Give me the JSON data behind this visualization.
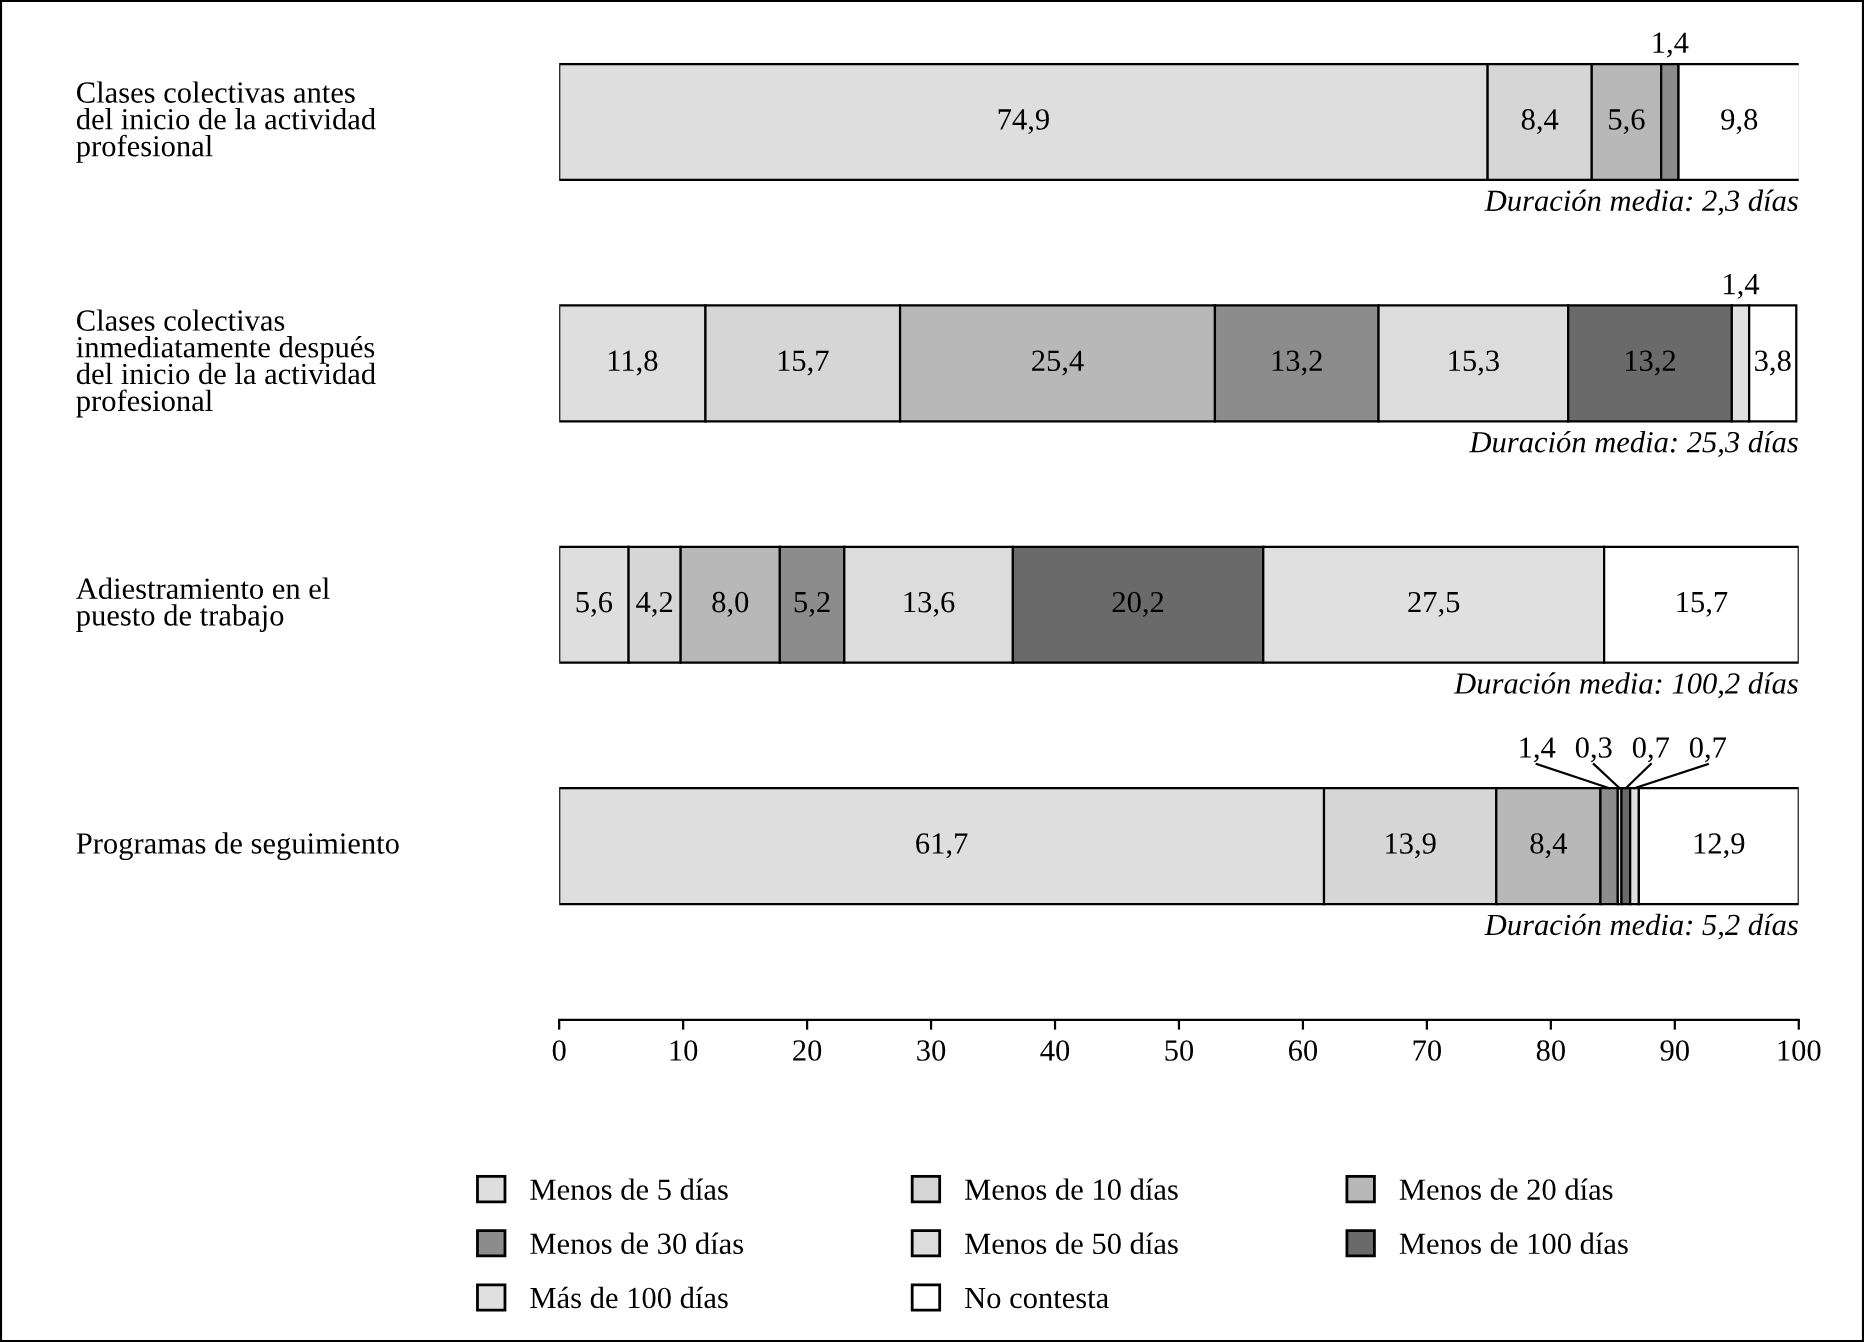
{
  "chart_data": {
    "type": "bar",
    "orientation": "horizontal",
    "stacked": true,
    "categories": [
      "Clases colectivas antes\ndel inicio de la actividad\nprofesional",
      "Clases colectivas\ninmediatamente después\ndel inicio de la actividad\nprofesional",
      "Adiestramiento en el\npuesto de trabajo",
      "Programas de seguimiento"
    ],
    "series": [
      {
        "name": "Menos de 5 días",
        "color": "#dedede",
        "values": [
          74.9,
          11.8,
          5.6,
          61.7
        ],
        "value_labels": [
          "74,9",
          "11,8",
          "5,6",
          "61,7"
        ]
      },
      {
        "name": "Menos de 10 días",
        "color": "#d6d6d6",
        "values": [
          8.4,
          15.7,
          4.2,
          13.9
        ],
        "value_labels": [
          "8,4",
          "15,7",
          "4,2",
          "13,9"
        ]
      },
      {
        "name": "Menos de 20 días",
        "color": "#b8b8b8",
        "values": [
          5.6,
          25.4,
          8.0,
          8.4
        ],
        "value_labels": [
          "5,6",
          "25,4",
          "8,0",
          "8,4"
        ]
      },
      {
        "name": "Menos de 30 días",
        "color": "#8c8c8c",
        "values": [
          1.4,
          13.2,
          5.2,
          1.4
        ],
        "value_labels": [
          "1,4",
          "13,2",
          "5,2",
          "1,4"
        ]
      },
      {
        "name": "Menos de 50 días",
        "color": "#dcdcdc",
        "values": [
          null,
          15.3,
          13.6,
          0.3
        ],
        "value_labels": [
          null,
          "15,3",
          "13,6",
          "0,3"
        ]
      },
      {
        "name": "Menos de 100 días",
        "color": "#6a6a6a",
        "values": [
          null,
          13.2,
          20.2,
          0.7
        ],
        "value_labels": [
          null,
          "13,2",
          "20,2",
          "0,7"
        ]
      },
      {
        "name": "Más de 100 días",
        "color": "#e0e0e0",
        "values": [
          null,
          1.4,
          27.5,
          0.7
        ],
        "value_labels": [
          null,
          "1,4",
          "27,5",
          "0,7"
        ]
      },
      {
        "name": "No contesta",
        "color": "#ffffff",
        "values": [
          9.8,
          3.8,
          15.7,
          12.9
        ],
        "value_labels": [
          "9,8",
          "3,8",
          "15,7",
          "12,9"
        ]
      }
    ],
    "xlim": [
      0,
      100
    ],
    "xticks": [
      0,
      10,
      20,
      30,
      40,
      50,
      60,
      70,
      80,
      90,
      100
    ],
    "annotations": [
      "Duración media: 2,3 días",
      "Duración media: 25,3 días",
      "Duración media: 100,2 días",
      "Duración media: 5,2 días"
    ],
    "legend": "bottom",
    "grid": false
  }
}
